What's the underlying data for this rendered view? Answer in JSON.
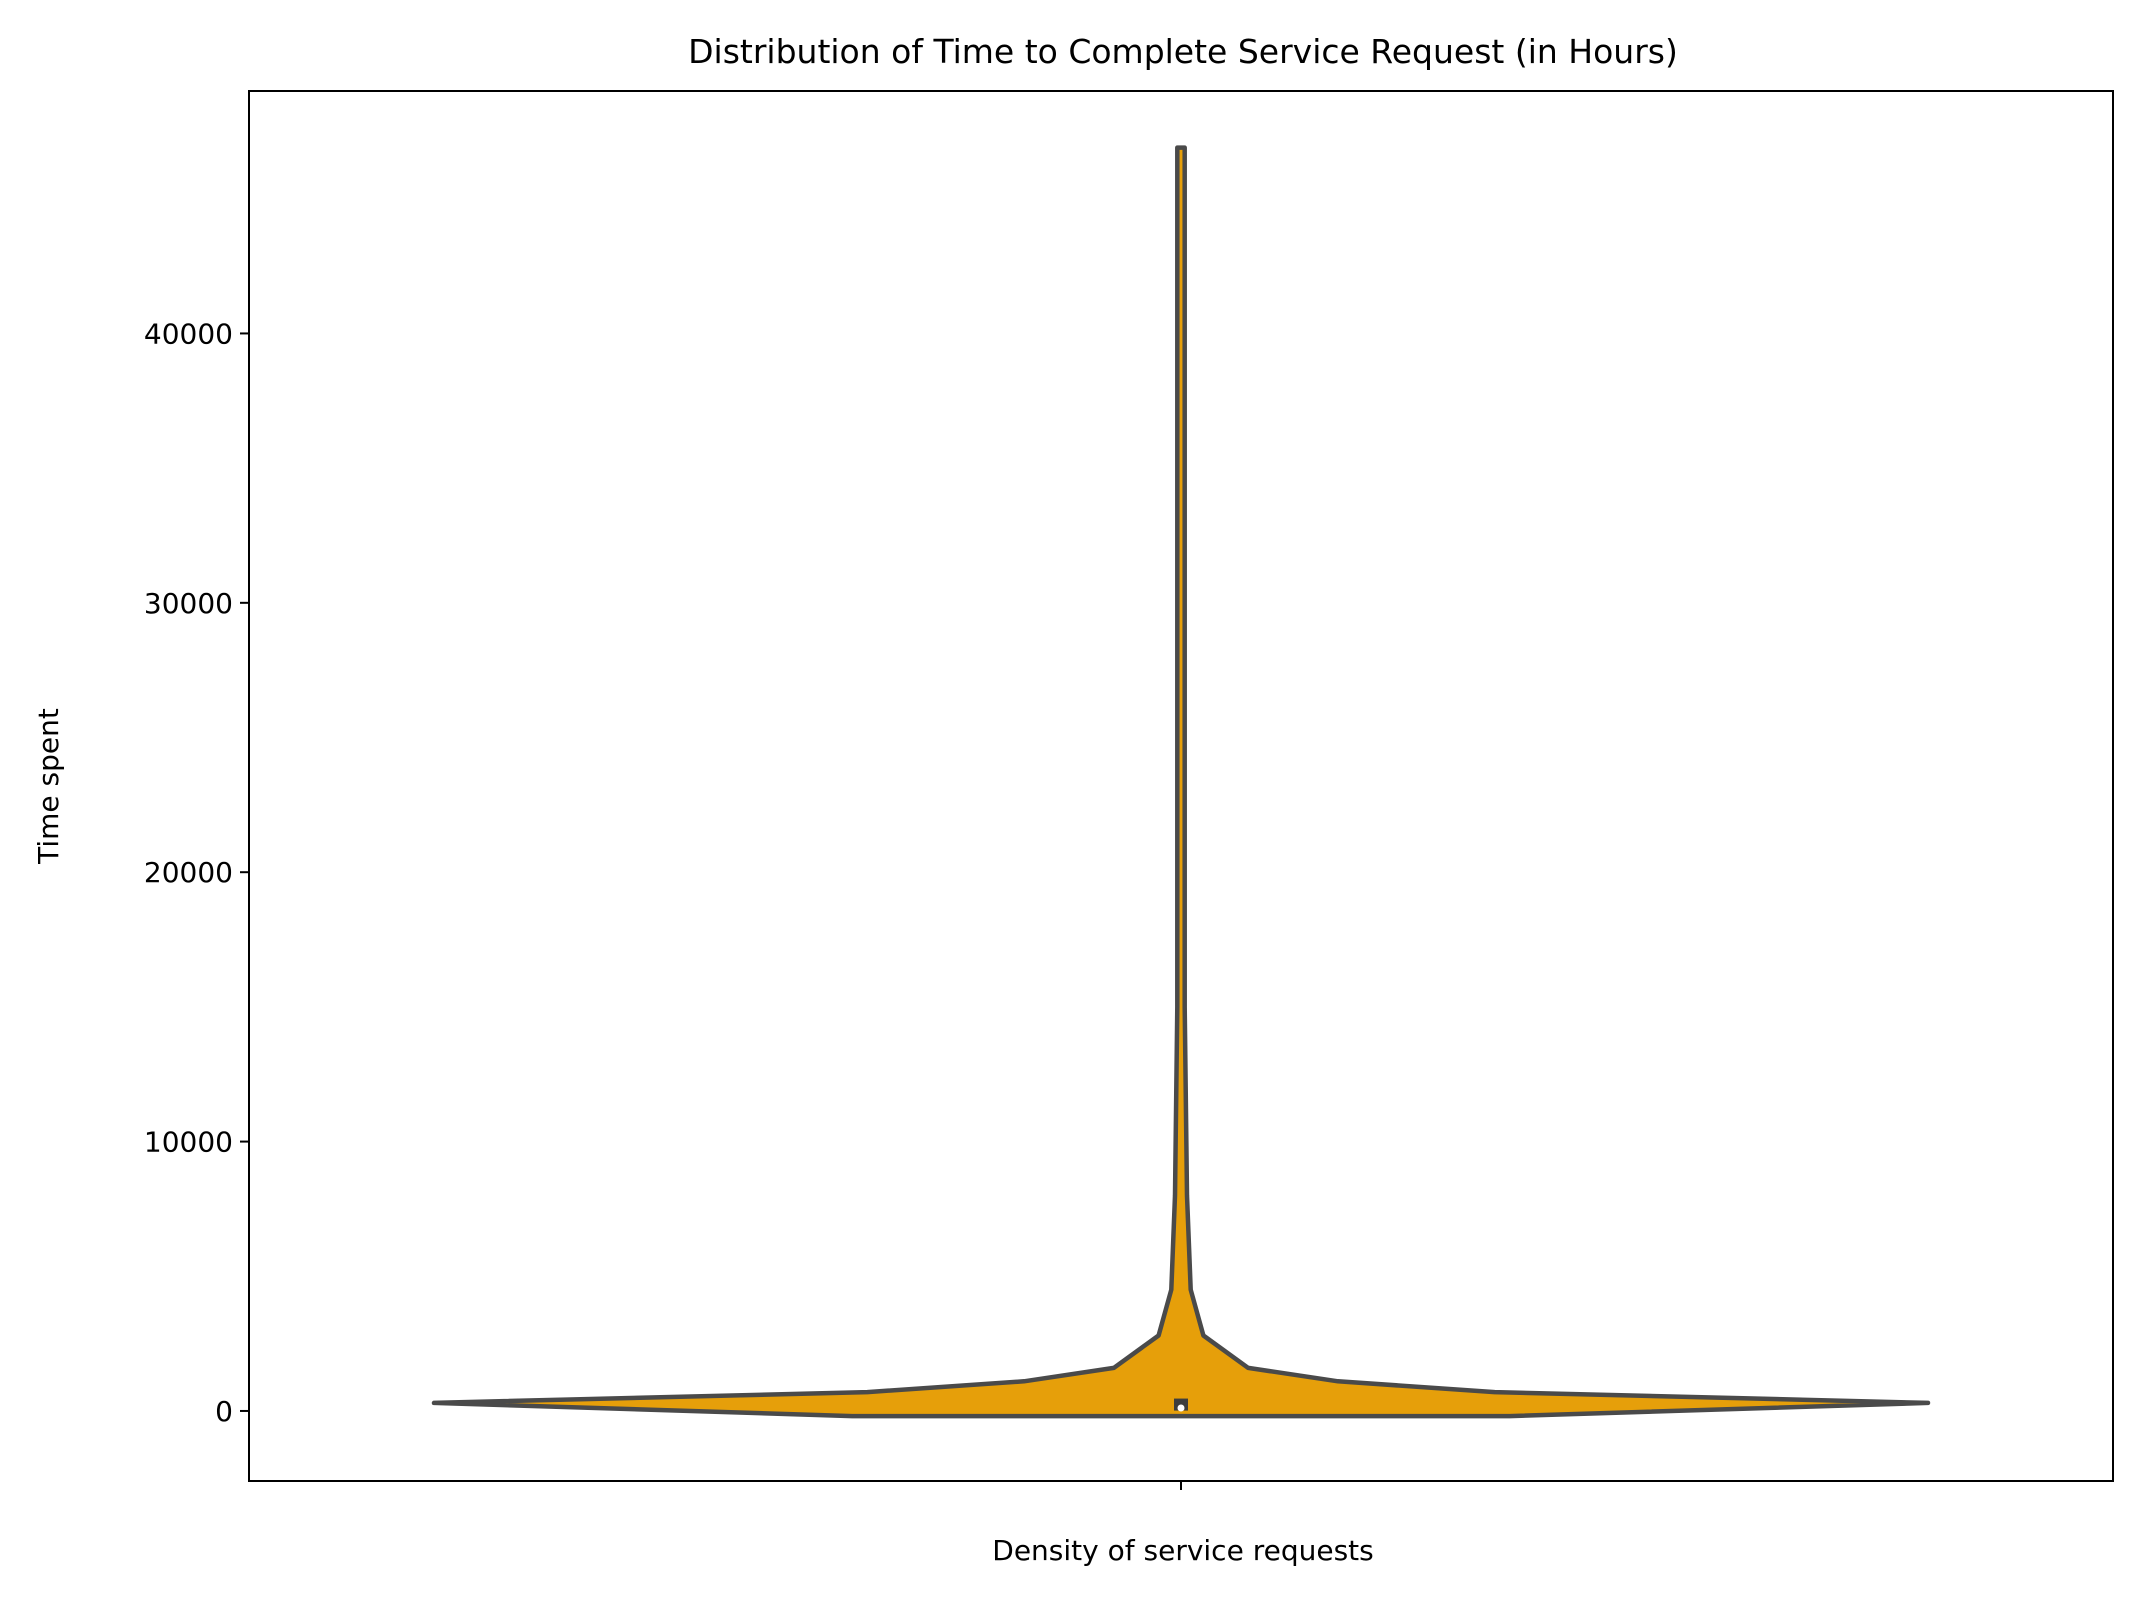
{
  "chart_data": {
    "type": "violin",
    "title": "Distribution of Time to Complete Service Request (in Hours)",
    "xlabel": "Density of service requests",
    "ylabel": "Time spent",
    "ylim": [
      -2600,
      49000
    ],
    "y_ticks": [
      0,
      10000,
      20000,
      30000,
      40000
    ],
    "y_tick_labels": [
      "0",
      "10000",
      "20000",
      "30000",
      "40000"
    ],
    "x_tick_labels": [
      ""
    ],
    "grid": false,
    "legend": "none",
    "series": [
      {
        "color": "#e69f0a",
        "edge_color": "#4a4a4a",
        "min": -190,
        "max": 46900,
        "quartiles": [
          20,
          110,
          460
        ],
        "median": 110,
        "density_profile": [
          {
            "y": -190,
            "width": 0.44
          },
          {
            "y": 300,
            "width": 1.0
          },
          {
            "y": 700,
            "width": 0.42
          },
          {
            "y": 1100,
            "width": 0.21
          },
          {
            "y": 1600,
            "width": 0.09
          },
          {
            "y": 2800,
            "width": 0.03
          },
          {
            "y": 4500,
            "width": 0.013
          },
          {
            "y": 8000,
            "width": 0.008
          },
          {
            "y": 15000,
            "width": 0.005
          },
          {
            "y": 46900,
            "width": 0.005
          }
        ]
      }
    ]
  }
}
